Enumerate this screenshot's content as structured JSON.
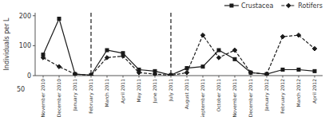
{
  "chart_data": {
    "type": "line",
    "categories": [
      "November 2010",
      "December 2010",
      "January 2011",
      "February 2011",
      "March 2011",
      "April 2011",
      "May 2011",
      "June 2011",
      "July 2011",
      "August 2011",
      "September 2011",
      "October 2011",
      "November 2011",
      "December 2011",
      "January 2012",
      "February 2012",
      "March 2012",
      "April 2012"
    ],
    "series": [
      {
        "name": "Crustacea",
        "color": "#1a1a1a",
        "marker": "square",
        "line_style": "solid",
        "values": [
          70,
          190,
          5,
          2,
          85,
          75,
          20,
          15,
          2,
          25,
          30,
          85,
          55,
          10,
          5,
          20,
          20,
          15
        ]
      },
      {
        "name": "Rotifers",
        "color": "#1a1a1a",
        "marker": "diamond",
        "line_style": "dashed",
        "values": [
          60,
          30,
          5,
          1,
          60,
          65,
          10,
          5,
          1,
          10,
          135,
          60,
          85,
          10,
          5,
          130,
          135,
          90
        ]
      }
    ],
    "vlines": [
      "February 2011",
      "July 2011"
    ],
    "ylabel": "Individuals per L",
    "annotations": [
      {
        "text": "50"
      }
    ],
    "ylim": [
      0,
      210
    ],
    "yticks": [
      0,
      100,
      200
    ],
    "grid": false,
    "legend": "upper right"
  }
}
